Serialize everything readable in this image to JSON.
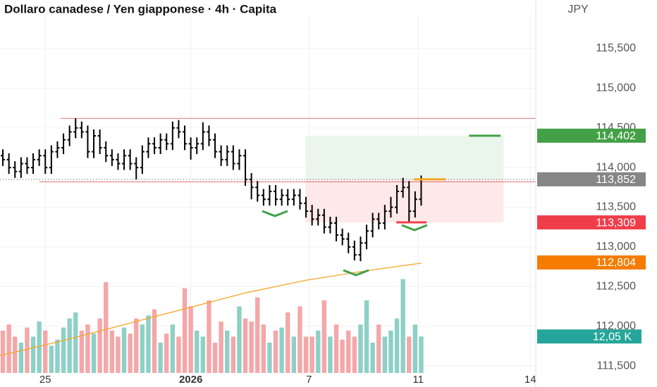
{
  "chart_data": {
    "type": "ohlc",
    "title": "Dollaro canadese / Yen giapponese · 4h · Capita",
    "currency": "JPY",
    "xlim": [
      -0.47,
      87.9
    ],
    "xticks": [
      {
        "value": 7,
        "label": "25"
      },
      {
        "value": 31,
        "label": "2026"
      },
      {
        "value": 50.5,
        "label": "7"
      },
      {
        "value": 68.5,
        "label": "11"
      },
      {
        "value": 87,
        "label": "14"
      }
    ],
    "ylim": [
      111.323,
      116.112
    ],
    "yticks": [
      {
        "value": 111.5,
        "label": "111,500"
      },
      {
        "value": 112,
        "label": "112,000"
      },
      {
        "value": 112.5,
        "label": "112,500"
      },
      {
        "value": 113,
        "label": "113,000"
      },
      {
        "value": 113.5,
        "label": "113,500"
      },
      {
        "value": 114,
        "label": "114,000"
      },
      {
        "value": 114.5,
        "label": "114,500"
      },
      {
        "value": 115,
        "label": "115,000"
      },
      {
        "value": 115.5,
        "label": "115,500"
      }
    ],
    "grid": true,
    "bar_color": "#000000",
    "open": [
      114.15,
      114.1,
      114.0,
      113.95,
      114.05,
      114.0,
      114.1,
      114.15,
      114.0,
      114.2,
      114.25,
      114.35,
      114.45,
      114.5,
      114.45,
      114.2,
      114.4,
      114.25,
      114.15,
      114.1,
      114.05,
      114.15,
      114.05,
      114.0,
      114.2,
      114.3,
      114.25,
      114.35,
      114.3,
      114.5,
      114.45,
      114.3,
      114.25,
      114.3,
      114.45,
      114.35,
      114.2,
      114.1,
      114.2,
      114.05,
      114.15,
      113.85,
      113.75,
      113.65,
      113.6,
      113.7,
      113.6,
      113.65,
      113.6,
      113.65,
      113.55,
      113.45,
      113.35,
      113.4,
      113.25,
      113.3,
      113.15,
      113.1,
      113.0,
      112.9,
      113.05,
      113.2,
      113.35,
      113.3,
      113.45,
      113.5,
      113.7,
      113.75,
      113.45,
      113.6
    ],
    "high": [
      114.23,
      114.18,
      114.08,
      114.13,
      114.13,
      114.18,
      114.23,
      114.23,
      114.28,
      114.33,
      114.43,
      114.53,
      114.62,
      114.58,
      114.53,
      114.48,
      114.48,
      114.33,
      114.23,
      114.18,
      114.23,
      114.23,
      114.13,
      114.28,
      114.38,
      114.38,
      114.43,
      114.43,
      114.58,
      114.6,
      114.53,
      114.38,
      114.38,
      114.57,
      114.53,
      114.43,
      114.28,
      114.28,
      114.28,
      114.23,
      114.23,
      113.93,
      113.83,
      113.73,
      113.78,
      113.78,
      113.73,
      113.73,
      113.73,
      113.73,
      113.63,
      113.53,
      113.48,
      113.48,
      113.38,
      113.38,
      113.23,
      113.18,
      113.08,
      113.13,
      113.28,
      113.43,
      113.43,
      113.53,
      113.63,
      113.78,
      113.87,
      113.83,
      113.7,
      113.9
    ],
    "low": [
      114.02,
      113.92,
      113.87,
      113.87,
      113.92,
      113.92,
      114.02,
      113.92,
      113.92,
      114.12,
      114.17,
      114.27,
      114.37,
      114.37,
      114.12,
      114.12,
      114.17,
      114.07,
      114.02,
      113.97,
      113.97,
      113.97,
      113.85,
      113.92,
      114.12,
      114.17,
      114.17,
      114.22,
      114.22,
      114.37,
      114.22,
      114.1,
      114.17,
      114.22,
      114.27,
      114.12,
      114.02,
      114.02,
      113.97,
      113.97,
      113.77,
      113.6,
      113.57,
      113.52,
      113.52,
      113.52,
      113.52,
      113.52,
      113.52,
      113.47,
      113.37,
      113.27,
      113.27,
      113.17,
      113.17,
      113.07,
      113.02,
      112.92,
      112.83,
      112.82,
      112.97,
      113.12,
      113.22,
      113.22,
      113.37,
      113.42,
      113.62,
      113.32,
      113.37,
      113.52
    ],
    "close": [
      114.1,
      114.0,
      113.95,
      114.05,
      114.0,
      114.1,
      114.15,
      114.0,
      114.2,
      114.25,
      114.35,
      114.45,
      114.5,
      114.45,
      114.2,
      114.4,
      114.25,
      114.15,
      114.1,
      114.05,
      114.15,
      114.05,
      114.0,
      114.2,
      114.3,
      114.25,
      114.35,
      114.3,
      114.5,
      114.45,
      114.3,
      114.25,
      114.3,
      114.45,
      114.35,
      114.2,
      114.1,
      114.2,
      114.05,
      114.15,
      113.85,
      113.75,
      113.65,
      113.6,
      113.7,
      113.6,
      113.65,
      113.6,
      113.65,
      113.55,
      113.45,
      113.35,
      113.4,
      113.25,
      113.3,
      113.15,
      113.1,
      113.0,
      112.9,
      113.05,
      113.2,
      113.35,
      113.3,
      113.45,
      113.5,
      113.7,
      113.75,
      113.45,
      113.6,
      113.85
    ],
    "volume": [
      14,
      16,
      12,
      10,
      15,
      12,
      17,
      14,
      9,
      11,
      15,
      18,
      20,
      14,
      16,
      13,
      18,
      30,
      14,
      12,
      15,
      13,
      18,
      16,
      19,
      21,
      10,
      13,
      16,
      12,
      28,
      22,
      14,
      12,
      24,
      10,
      17,
      14,
      12,
      22,
      18,
      17,
      25,
      16,
      10,
      14,
      15,
      20,
      12,
      22,
      12,
      12,
      14,
      24,
      12,
      16,
      11,
      14,
      12,
      16,
      24,
      10,
      16,
      12,
      14,
      18,
      31,
      12,
      16,
      12.05
    ],
    "vlim": [
      0,
      40
    ],
    "volume_up_color": "#8ed0c6",
    "volume_down_color": "#f4a7a9",
    "volume_label": {
      "value": 12.05,
      "label": "12,05 K",
      "color": "#26a69a"
    },
    "ma": {
      "x": [
        -0.47,
        10,
        20,
        30,
        40,
        50,
        60,
        69
      ],
      "values": [
        111.63,
        111.82,
        112.02,
        112.22,
        112.42,
        112.58,
        112.7,
        112.795
      ],
      "color": "#f5a623"
    },
    "hlines": [
      {
        "value": 114.62,
        "from": 9.5,
        "color": "#e57373"
      },
      {
        "value": 113.82,
        "from": 6,
        "color": "#e57373"
      }
    ],
    "last_price": 113.852,
    "price_labels": [
      {
        "value": 114.402,
        "label": "114,402",
        "color": "#43a047"
      },
      {
        "value": 113.852,
        "label": "113,852",
        "color": "#868686"
      },
      {
        "value": 113.309,
        "label": "113,309",
        "color": "#ef3e4a"
      },
      {
        "value": 112.804,
        "label": "112,804",
        "color": "#f57c00"
      }
    ],
    "position": {
      "start": 49.9,
      "end": 82.6,
      "target": 114.402,
      "entry": 113.852,
      "stop": 113.309,
      "target_line": [
        76.9,
        82.1
      ],
      "entry_line": [
        67.8,
        73
      ],
      "stop_line": [
        64.9,
        69.9
      ]
    }
  }
}
